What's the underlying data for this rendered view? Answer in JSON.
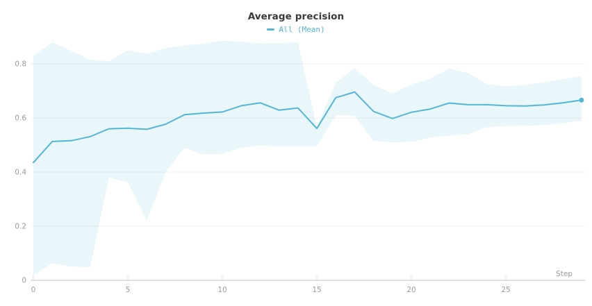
{
  "header": {
    "title": "Average precision"
  },
  "legend": {
    "items": [
      {
        "label": "All (Mean)"
      }
    ]
  },
  "chart_data": {
    "type": "line",
    "title": "Average precision",
    "xlabel": "Step",
    "ylabel": "",
    "legend_position": "top-center",
    "grid": true,
    "xlim": [
      0,
      29.2
    ],
    "ylim": [
      0,
      0.9
    ],
    "xticks": [
      0,
      5,
      10,
      15,
      20,
      25
    ],
    "ytick_labels": [
      "0",
      "0.2",
      "0.4",
      "0.6",
      "0.8"
    ],
    "ytick_values": [
      0,
      0.2,
      0.4,
      0.6,
      0.8
    ],
    "x": [
      0,
      1,
      2,
      3,
      4,
      5,
      6,
      7,
      8,
      9,
      10,
      11,
      12,
      13,
      14,
      15,
      16,
      17,
      18,
      19,
      20,
      21,
      22,
      23,
      24,
      25,
      26,
      27,
      28,
      29
    ],
    "series": [
      {
        "name": "All (Mean)",
        "role": "mean-line",
        "values": [
          0.435,
          0.513,
          0.516,
          0.531,
          0.56,
          0.562,
          0.558,
          0.577,
          0.612,
          0.618,
          0.622,
          0.645,
          0.656,
          0.629,
          0.637,
          0.561,
          0.675,
          0.696,
          0.624,
          0.598,
          0.621,
          0.633,
          0.655,
          0.649,
          0.649,
          0.645,
          0.644,
          0.648,
          0.656,
          0.666
        ]
      },
      {
        "name": "band upper",
        "role": "band-upper",
        "values": [
          0.83,
          0.879,
          0.848,
          0.815,
          0.81,
          0.85,
          0.838,
          0.858,
          0.868,
          0.875,
          0.885,
          0.882,
          0.875,
          0.877,
          0.879,
          0.566,
          0.73,
          0.784,
          0.722,
          0.69,
          0.724,
          0.745,
          0.782,
          0.766,
          0.725,
          0.717,
          0.722,
          0.731,
          0.743,
          0.755
        ]
      },
      {
        "name": "band lower",
        "role": "band-lower",
        "values": [
          0.018,
          0.063,
          0.051,
          0.048,
          0.38,
          0.362,
          0.221,
          0.4,
          0.489,
          0.465,
          0.467,
          0.49,
          0.498,
          0.495,
          0.495,
          0.495,
          0.61,
          0.608,
          0.515,
          0.51,
          0.512,
          0.527,
          0.535,
          0.54,
          0.566,
          0.57,
          0.571,
          0.574,
          0.58,
          0.59
        ]
      }
    ],
    "colors": {
      "line": "#54b6d5",
      "band": "rgba(84,182,213,0.13)",
      "grid": "#f0f0f0",
      "axis": "#e0e0e0",
      "tick_text": "#9b9b9b",
      "title": "#3a3a3a"
    }
  }
}
